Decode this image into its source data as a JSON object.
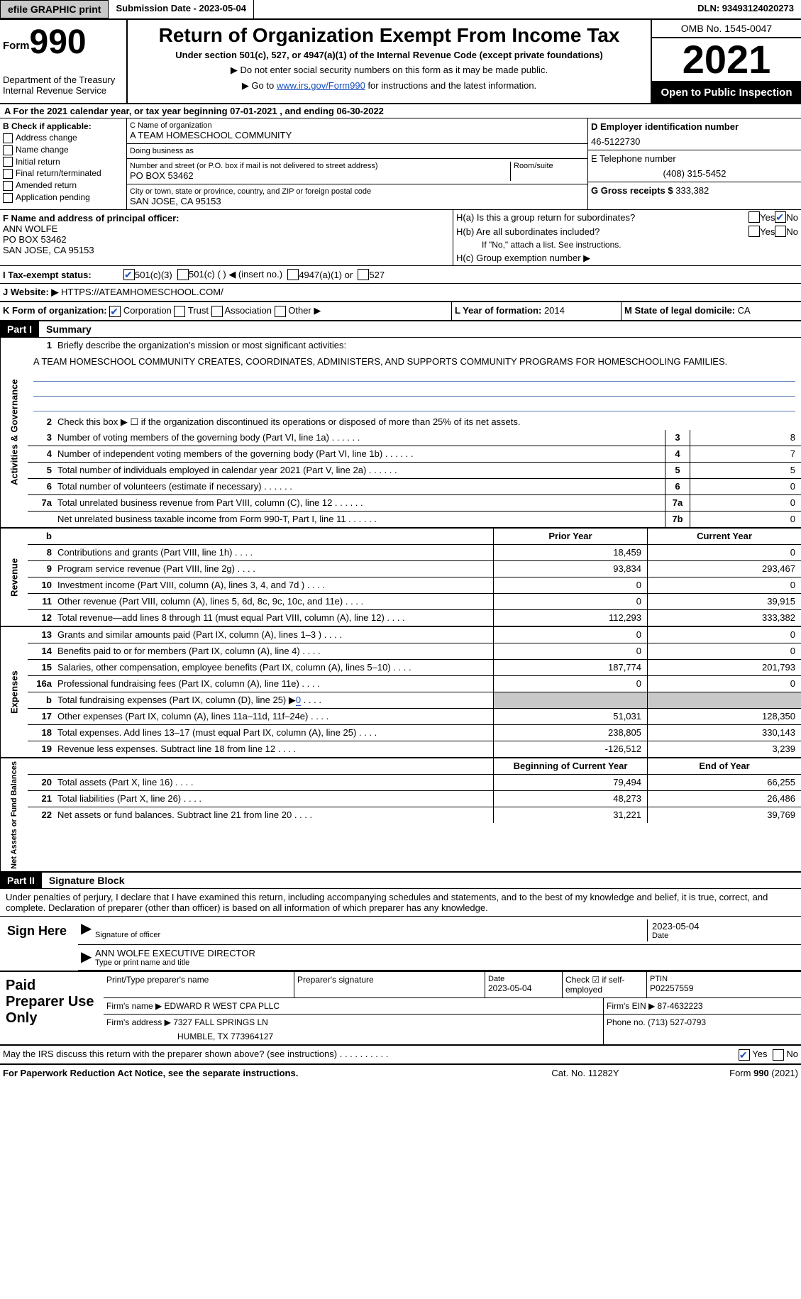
{
  "top": {
    "efile_btn": "efile GRAPHIC print",
    "sub_date_label": "Submission Date - ",
    "sub_date": "2023-05-04",
    "dln": "DLN: 93493124020273"
  },
  "header": {
    "form_word": "Form",
    "form_num": "990",
    "dept": "Department of the Treasury",
    "irs": "Internal Revenue Service",
    "title": "Return of Organization Exempt From Income Tax",
    "sub1": "Under section 501(c), 527, or 4947(a)(1) of the Internal Revenue Code (except private foundations)",
    "sub2": "▶ Do not enter social security numbers on this form as it may be made public.",
    "sub3_pre": "▶ Go to ",
    "sub3_link": "www.irs.gov/Form990",
    "sub3_post": " for instructions and the latest information.",
    "omb": "OMB No. 1545-0047",
    "year": "2021",
    "open": "Open to Public Inspection"
  },
  "rowA": "A For the 2021 calendar year, or tax year beginning 07-01-2021    , and ending 06-30-2022",
  "sectionB": {
    "label": "B Check if applicable:",
    "opts": [
      "Address change",
      "Name change",
      "Initial return",
      "Final return/terminated",
      "Amended return",
      "Application pending"
    ]
  },
  "sectionC": {
    "name_label": "C Name of organization",
    "name": "A TEAM HOMESCHOOL COMMUNITY",
    "dba_label": "Doing business as",
    "dba": "",
    "addr_label": "Number and street (or P.O. box if mail is not delivered to street address)",
    "room_label": "Room/suite",
    "addr": "PO BOX 53462",
    "city_label": "City or town, state or province, country, and ZIP or foreign postal code",
    "city": "SAN JOSE, CA  95153"
  },
  "sectionD": {
    "ein_label": "D Employer identification number",
    "ein": "46-5122730",
    "phone_label": "E Telephone number",
    "phone": "(408) 315-5452",
    "gross_label": "G Gross receipts $ ",
    "gross": "333,382"
  },
  "sectionF": {
    "label": "F  Name and address of principal officer:",
    "line1": "ANN WOLFE",
    "line2": "PO BOX 53462",
    "line3": "SAN JOSE, CA  95153"
  },
  "sectionH": {
    "ha": "H(a)  Is this a group return for subordinates?",
    "hb": "H(b)  Are all subordinates included?",
    "hb_note": "If \"No,\" attach a list. See instructions.",
    "hc": "H(c)  Group exemption number ▶",
    "yes": "Yes",
    "no": "No"
  },
  "sectionI": {
    "label": "I   Tax-exempt status:",
    "c3": "501(c)(3)",
    "c": "501(c) (  ) ◀ (insert no.)",
    "a1": "4947(a)(1) or",
    "527": "527"
  },
  "sectionJ": {
    "label": "J   Website: ▶ ",
    "url": "HTTPS://ATEAMHOMESCHOOL.COM/"
  },
  "sectionK": {
    "label": "K Form of organization:",
    "corp": "Corporation",
    "trust": "Trust",
    "assoc": "Association",
    "other": "Other ▶",
    "L": "L Year of formation: ",
    "Lval": "2014",
    "M": "M State of legal domicile: ",
    "Mval": "CA"
  },
  "parts": {
    "p1": "Part I",
    "p1t": "Summary",
    "p2": "Part II",
    "p2t": "Signature Block"
  },
  "summary": {
    "v1": "Activities & Governance",
    "v2": "Revenue",
    "v3": "Expenses",
    "v4": "Net Assets or Fund Balances",
    "q1": "Briefly describe the organization's mission or most significant activities:",
    "mission": "A TEAM HOMESCHOOL COMMUNITY CREATES, COORDINATES, ADMINISTERS, AND SUPPORTS COMMUNITY PROGRAMS FOR HOMESCHOOLING FAMILIES.",
    "q2": "Check this box ▶ ☐ if the organization discontinued its operations or disposed of more than 25% of its net assets.",
    "rows_ag": [
      {
        "n": "3",
        "d": "Number of voting members of the governing body (Part VI, line 1a)",
        "b": "3",
        "v": "8"
      },
      {
        "n": "4",
        "d": "Number of independent voting members of the governing body (Part VI, line 1b)",
        "b": "4",
        "v": "7"
      },
      {
        "n": "5",
        "d": "Total number of individuals employed in calendar year 2021 (Part V, line 2a)",
        "b": "5",
        "v": "5"
      },
      {
        "n": "6",
        "d": "Total number of volunteers (estimate if necessary)",
        "b": "6",
        "v": "0"
      },
      {
        "n": "7a",
        "d": "Total unrelated business revenue from Part VIII, column (C), line 12",
        "b": "7a",
        "v": "0"
      },
      {
        "n": "",
        "d": "Net unrelated business taxable income from Form 990-T, Part I, line 11",
        "b": "7b",
        "v": "0"
      }
    ],
    "hdr": {
      "prior": "Prior Year",
      "curr": "Current Year"
    },
    "rows_rev": [
      {
        "n": "8",
        "d": "Contributions and grants (Part VIII, line 1h)",
        "p": "18,459",
        "c": "0"
      },
      {
        "n": "9",
        "d": "Program service revenue (Part VIII, line 2g)",
        "p": "93,834",
        "c": "293,467"
      },
      {
        "n": "10",
        "d": "Investment income (Part VIII, column (A), lines 3, 4, and 7d )",
        "p": "0",
        "c": "0"
      },
      {
        "n": "11",
        "d": "Other revenue (Part VIII, column (A), lines 5, 6d, 8c, 9c, 10c, and 11e)",
        "p": "0",
        "c": "39,915"
      },
      {
        "n": "12",
        "d": "Total revenue—add lines 8 through 11 (must equal Part VIII, column (A), line 12)",
        "p": "112,293",
        "c": "333,382"
      }
    ],
    "rows_exp": [
      {
        "n": "13",
        "d": "Grants and similar amounts paid (Part IX, column (A), lines 1–3 )",
        "p": "0",
        "c": "0"
      },
      {
        "n": "14",
        "d": "Benefits paid to or for members (Part IX, column (A), line 4)",
        "p": "0",
        "c": "0"
      },
      {
        "n": "15",
        "d": "Salaries, other compensation, employee benefits (Part IX, column (A), lines 5–10)",
        "p": "187,774",
        "c": "201,793"
      },
      {
        "n": "16a",
        "d": "Professional fundraising fees (Part IX, column (A), line 11e)",
        "p": "0",
        "c": "0"
      },
      {
        "n": "b",
        "d": "Total fundraising expenses (Part IX, column (D), line 25) ▶",
        "p": "GRAY",
        "c": "GRAY",
        "extra": "0"
      },
      {
        "n": "17",
        "d": "Other expenses (Part IX, column (A), lines 11a–11d, 11f–24e)",
        "p": "51,031",
        "c": "128,350"
      },
      {
        "n": "18",
        "d": "Total expenses. Add lines 13–17 (must equal Part IX, column (A), line 25)",
        "p": "238,805",
        "c": "330,143"
      },
      {
        "n": "19",
        "d": "Revenue less expenses. Subtract line 18 from line 12",
        "p": "-126,512",
        "c": "3,239"
      }
    ],
    "hdr2": {
      "prior": "Beginning of Current Year",
      "curr": "End of Year"
    },
    "rows_na": [
      {
        "n": "20",
        "d": "Total assets (Part X, line 16)",
        "p": "79,494",
        "c": "66,255"
      },
      {
        "n": "21",
        "d": "Total liabilities (Part X, line 26)",
        "p": "48,273",
        "c": "26,486"
      },
      {
        "n": "22",
        "d": "Net assets or fund balances. Subtract line 21 from line 20",
        "p": "31,221",
        "c": "39,769"
      }
    ]
  },
  "sig": {
    "declare": "Under penalties of perjury, I declare that I have examined this return, including accompanying schedules and statements, and to the best of my knowledge and belief, it is true, correct, and complete. Declaration of preparer (other than officer) is based on all information of which preparer has any knowledge.",
    "sign_here": "Sign Here",
    "sig_of_officer": "Signature of officer",
    "date": "Date",
    "sig_date": "2023-05-04",
    "name_title": "ANN WOLFE  EXECUTIVE DIRECTOR",
    "name_title_label": "Type or print name and title"
  },
  "prep": {
    "title": "Paid Preparer Use Only",
    "r1c1": "Print/Type preparer's name",
    "r1c2": "Preparer's signature",
    "r1c3l": "Date",
    "r1c3v": "2023-05-04",
    "r1c4": "Check ☑ if self-employed",
    "r1c5l": "PTIN",
    "r1c5v": "P02257559",
    "r2l": "Firm's name    ▶ ",
    "r2v": "EDWARD R WEST CPA PLLC",
    "r2r": "Firm's EIN ▶ 87-4632223",
    "r3l": "Firm's address ▶ ",
    "r3v1": "7327 FALL SPRINGS LN",
    "r3v2": "HUMBLE, TX  773964127",
    "r3r": "Phone no. (713) 527-0793"
  },
  "irs_discuss": "May the IRS discuss this return with the preparer shown above? (see instructions)",
  "footer": {
    "left": "For Paperwork Reduction Act Notice, see the separate instructions.",
    "mid": "Cat. No. 11282Y",
    "right": "Form 990 (2021)"
  }
}
